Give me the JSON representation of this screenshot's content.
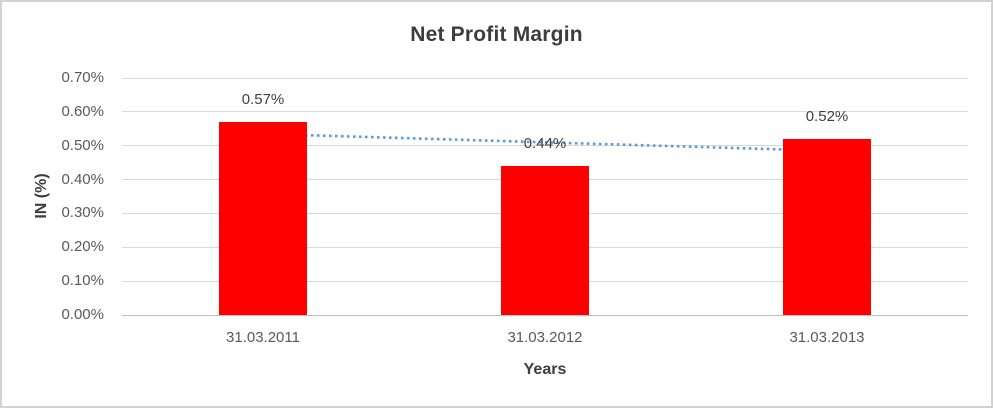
{
  "chart_data": {
    "type": "bar",
    "title": "Net Profit Margin",
    "xlabel": "Years",
    "ylabel": "IN (%)",
    "unit": "%",
    "categories": [
      "31.03.2011",
      "31.03.2012",
      "31.03.2013"
    ],
    "values": [
      0.57,
      0.44,
      0.52
    ],
    "data_labels": [
      "0.57%",
      "0.44%",
      "0.52%"
    ],
    "ylim": [
      0,
      0.7
    ],
    "ytick_step": 0.1,
    "ytick_labels": [
      "0.00%",
      "0.10%",
      "0.20%",
      "0.30%",
      "0.40%",
      "0.50%",
      "0.60%",
      "0.70%"
    ],
    "grid": true,
    "legend": "none",
    "bar_color": "#ff0000",
    "trendline": {
      "type": "linear",
      "style": "dotted",
      "color": "#5b9bd5",
      "start_value": 0.535,
      "end_value": 0.485
    },
    "colors": {
      "title_text": "#3d3d3d",
      "tick_text": "#595959",
      "data_label_text": "#404040",
      "gridline": "#d9d9d9",
      "axis_line": "#bfbfbf",
      "chart_border": "#d2d2d2",
      "background": "#ffffff"
    }
  }
}
